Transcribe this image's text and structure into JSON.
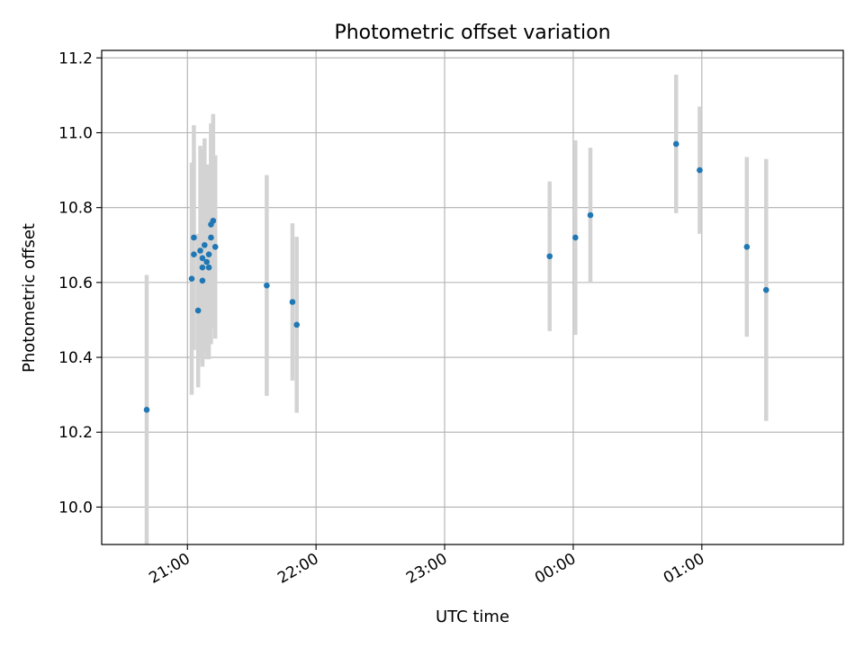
{
  "chart_data": {
    "type": "scatter",
    "title": "Photometric offset variation",
    "xlabel": "UTC time",
    "ylabel": "Photometric offset",
    "grid": true,
    "x_unit": "UTC time (HH:MM)",
    "xlim": [
      "20:20",
      "02:06"
    ],
    "ylim": [
      9.9,
      11.22
    ],
    "x_ticks": [
      "21:00",
      "22:00",
      "23:00",
      "00:00",
      "01:00"
    ],
    "y_ticks": [
      "10.0",
      "10.2",
      "10.4",
      "10.6",
      "10.8",
      "11.0",
      "11.2"
    ],
    "colors": {
      "point": "#1f77b4",
      "errorbar": "#d3d3d3",
      "grid": "#b0b0b0"
    },
    "series": [
      {
        "points": [
          {
            "x": "20:41",
            "y": 10.26,
            "err": 0.36
          },
          {
            "x": "21:05",
            "y": 10.525,
            "err": 0.205
          },
          {
            "x": "21:07",
            "y": 10.605,
            "err": 0.19
          },
          {
            "x": "21:11",
            "y": 10.755,
            "err": 0.27
          },
          {
            "x": "21:12",
            "y": 10.765,
            "err": 0.285
          },
          {
            "x": "21:03",
            "y": 10.675,
            "err": 0.255
          },
          {
            "x": "21:02",
            "y": 10.61,
            "err": 0.31
          },
          {
            "x": "21:03",
            "y": 10.72,
            "err": 0.3
          },
          {
            "x": "21:06",
            "y": 10.685,
            "err": 0.28
          },
          {
            "x": "21:07",
            "y": 10.64,
            "err": 0.255
          },
          {
            "x": "21:07",
            "y": 10.665,
            "err": 0.29
          },
          {
            "x": "21:08",
            "y": 10.7,
            "err": 0.285
          },
          {
            "x": "21:09",
            "y": 10.655,
            "err": 0.26
          },
          {
            "x": "21:10",
            "y": 10.64,
            "err": 0.245
          },
          {
            "x": "21:10",
            "y": 10.675,
            "err": 0.24
          },
          {
            "x": "21:11",
            "y": 10.72,
            "err": 0.285
          },
          {
            "x": "21:13",
            "y": 10.695,
            "err": 0.245
          },
          {
            "x": "21:37",
            "y": 10.592,
            "err": 0.295
          },
          {
            "x": "21:49",
            "y": 10.548,
            "err": 0.21
          },
          {
            "x": "21:51",
            "y": 10.487,
            "err": 0.235
          },
          {
            "x": "23:49",
            "y": 10.67,
            "err": 0.2
          },
          {
            "x": "00:01",
            "y": 10.72,
            "err": 0.26
          },
          {
            "x": "00:08",
            "y": 10.78,
            "err": 0.18
          },
          {
            "x": "00:48",
            "y": 10.97,
            "err": 0.185
          },
          {
            "x": "00:59",
            "y": 10.9,
            "err": 0.17
          },
          {
            "x": "01:21",
            "y": 10.695,
            "err": 0.24
          },
          {
            "x": "01:30",
            "y": 10.58,
            "err": 0.35
          }
        ]
      }
    ]
  }
}
